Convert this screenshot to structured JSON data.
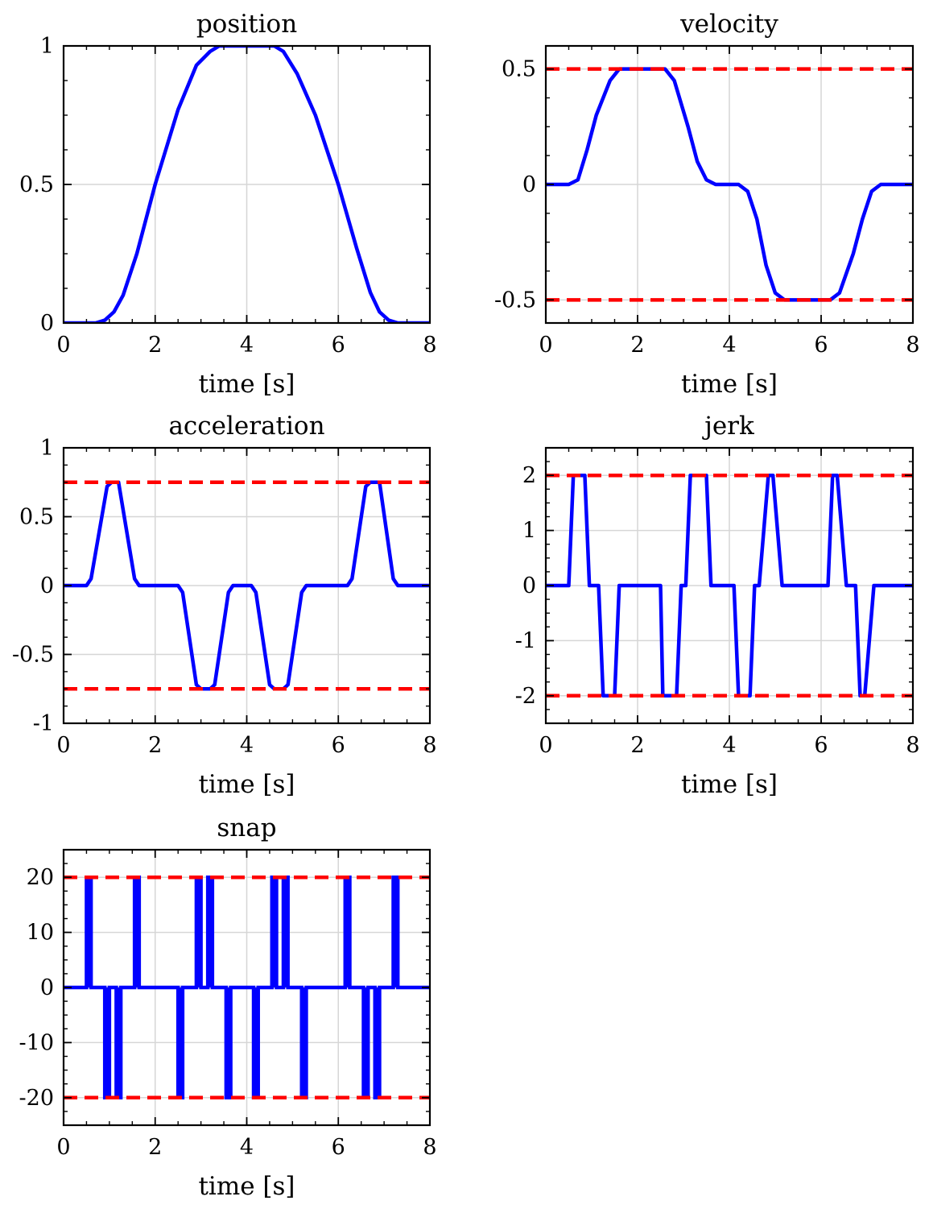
{
  "colors": {
    "series": "#0000ff",
    "limit": "#ff0000",
    "grid": "#d6d6d6",
    "axes": "#000000"
  },
  "chart_data": [
    {
      "type": "line",
      "title": "position",
      "xlabel": "time [s]",
      "ylabel": "",
      "xlim": [
        0,
        8
      ],
      "ylim": [
        0,
        1
      ],
      "xticks": [
        0,
        2,
        4,
        6,
        8
      ],
      "yticks": [
        0,
        0.5,
        1
      ],
      "xtick_labels": [
        "0",
        "2",
        "4",
        "6",
        "8"
      ],
      "ytick_labels": [
        "0",
        "0.5",
        "1"
      ],
      "grid": true,
      "limits": [],
      "series": [
        {
          "x": [
            0,
            0.7,
            0.9,
            1.1,
            1.3,
            1.6,
            2.0,
            2.5,
            2.9,
            3.2,
            3.4,
            3.6,
            4.0,
            4.4,
            4.6,
            4.8,
            5.1,
            5.5,
            6.0,
            6.4,
            6.7,
            6.9,
            7.1,
            7.3,
            8.0
          ],
          "y": [
            0,
            0,
            0.01,
            0.04,
            0.1,
            0.25,
            0.5,
            0.77,
            0.93,
            0.98,
            1.0,
            1.0,
            1.0,
            1.0,
            1.0,
            0.98,
            0.9,
            0.75,
            0.5,
            0.27,
            0.11,
            0.04,
            0.01,
            0,
            0
          ]
        }
      ]
    },
    {
      "type": "line",
      "title": "velocity",
      "xlabel": "time [s]",
      "ylabel": "",
      "xlim": [
        0,
        8
      ],
      "ylim": [
        -0.6,
        0.6
      ],
      "xticks": [
        0,
        2,
        4,
        6,
        8
      ],
      "yticks": [
        -0.5,
        0,
        0.5
      ],
      "xtick_labels": [
        "0",
        "2",
        "4",
        "6",
        "8"
      ],
      "ytick_labels": [
        "-0.5",
        "0",
        "0.5"
      ],
      "grid": true,
      "limits": [
        0.5,
        -0.5
      ],
      "series": [
        {
          "x": [
            0,
            0.5,
            0.7,
            0.9,
            1.1,
            1.4,
            1.6,
            2.6,
            2.8,
            3.1,
            3.3,
            3.5,
            3.7,
            4.2,
            4.4,
            4.6,
            4.8,
            5.0,
            5.2,
            6.2,
            6.4,
            6.7,
            6.9,
            7.1,
            7.3,
            8.0
          ],
          "y": [
            0,
            0,
            0.02,
            0.15,
            0.3,
            0.45,
            0.5,
            0.5,
            0.45,
            0.25,
            0.1,
            0.02,
            0,
            0,
            -0.03,
            -0.15,
            -0.35,
            -0.47,
            -0.5,
            -0.5,
            -0.47,
            -0.3,
            -0.15,
            -0.03,
            0,
            0
          ]
        }
      ]
    },
    {
      "type": "line",
      "title": "acceleration",
      "xlabel": "time [s]",
      "ylabel": "",
      "xlim": [
        0,
        8
      ],
      "ylim": [
        -1,
        1
      ],
      "xticks": [
        0,
        2,
        4,
        6,
        8
      ],
      "yticks": [
        -1,
        -0.5,
        0,
        0.5,
        1
      ],
      "xtick_labels": [
        "0",
        "2",
        "4",
        "6",
        "8"
      ],
      "ytick_labels": [
        "-1",
        "-0.5",
        "0",
        "0.5",
        "1"
      ],
      "grid": true,
      "limits": [
        0.75,
        -0.75
      ],
      "series": [
        {
          "x": [
            0,
            0.5,
            0.6,
            0.95,
            1.05,
            1.2,
            1.55,
            1.65,
            2.5,
            2.6,
            2.9,
            3.0,
            3.2,
            3.3,
            3.6,
            3.7,
            4.1,
            4.2,
            4.5,
            4.6,
            4.8,
            4.9,
            5.2,
            5.3,
            6.2,
            6.3,
            6.6,
            6.7,
            6.9,
            7.2,
            7.3,
            8.0
          ],
          "y": [
            0,
            0,
            0.05,
            0.72,
            0.75,
            0.75,
            0.05,
            0,
            0,
            -0.05,
            -0.72,
            -0.75,
            -0.75,
            -0.72,
            -0.05,
            0,
            0,
            -0.05,
            -0.72,
            -0.75,
            -0.75,
            -0.72,
            -0.05,
            0,
            0,
            0.05,
            0.72,
            0.75,
            0.75,
            0.05,
            0,
            0
          ]
        }
      ]
    },
    {
      "type": "line",
      "title": "jerk",
      "xlabel": "time [s]",
      "ylabel": "",
      "xlim": [
        0,
        8
      ],
      "ylim": [
        -2.5,
        2.5
      ],
      "xticks": [
        0,
        2,
        4,
        6,
        8
      ],
      "yticks": [
        -2,
        -1,
        0,
        1,
        2
      ],
      "xtick_labels": [
        "0",
        "2",
        "4",
        "6",
        "8"
      ],
      "ytick_labels": [
        "-2",
        "-1",
        "0",
        "1",
        "2"
      ],
      "grid": true,
      "limits": [
        2,
        -2
      ],
      "series": [
        {
          "x": [
            0,
            0.5,
            0.6,
            0.7,
            0.8,
            0.85,
            0.95,
            1.05,
            1.15,
            1.25,
            1.3,
            1.5,
            1.6,
            1.7,
            2.5,
            2.55,
            2.65,
            2.85,
            2.95,
            3.05,
            3.15,
            3.3,
            3.5,
            3.6,
            3.7,
            4.1,
            4.2,
            4.25,
            4.45,
            4.55,
            4.65,
            4.85,
            4.95,
            5.15,
            5.25,
            5.35,
            6.15,
            6.25,
            6.35,
            6.55,
            6.65,
            6.75,
            6.85,
            6.95,
            7.15,
            7.25,
            8.0
          ],
          "y": [
            0,
            0,
            2,
            2,
            2,
            2,
            0,
            0,
            0,
            -2,
            -2,
            -2,
            0,
            0,
            0,
            -2,
            -2,
            -2,
            0,
            0,
            2,
            2,
            2,
            0,
            0,
            0,
            -2,
            -2,
            -2,
            0,
            0,
            2,
            2,
            0,
            0,
            0,
            0,
            2,
            2,
            0,
            0,
            0,
            -2,
            -2,
            0,
            0,
            0
          ]
        }
      ]
    },
    {
      "type": "line",
      "title": "snap",
      "xlabel": "time [s]",
      "ylabel": "",
      "xlim": [
        0,
        8
      ],
      "ylim": [
        -25,
        25
      ],
      "xticks": [
        0,
        2,
        4,
        6,
        8
      ],
      "yticks": [
        -20,
        -10,
        0,
        10,
        20
      ],
      "xtick_labels": [
        "0",
        "2",
        "4",
        "6",
        "8"
      ],
      "ytick_labels": [
        "-20",
        "-10",
        "0",
        "10",
        "20"
      ],
      "grid": true,
      "limits": [
        20,
        -20
      ],
      "series": [
        {
          "pulses": [
            [
              0.55,
              20
            ],
            [
              0.95,
              -20
            ],
            [
              1.2,
              -20
            ],
            [
              1.6,
              20
            ],
            [
              2.55,
              -20
            ],
            [
              2.95,
              20
            ],
            [
              3.2,
              20
            ],
            [
              3.6,
              -20
            ],
            [
              4.2,
              -20
            ],
            [
              4.6,
              20
            ],
            [
              4.85,
              20
            ],
            [
              5.25,
              -20
            ],
            [
              6.2,
              20
            ],
            [
              6.6,
              -20
            ],
            [
              6.85,
              -20
            ],
            [
              7.25,
              20
            ]
          ]
        }
      ]
    }
  ]
}
